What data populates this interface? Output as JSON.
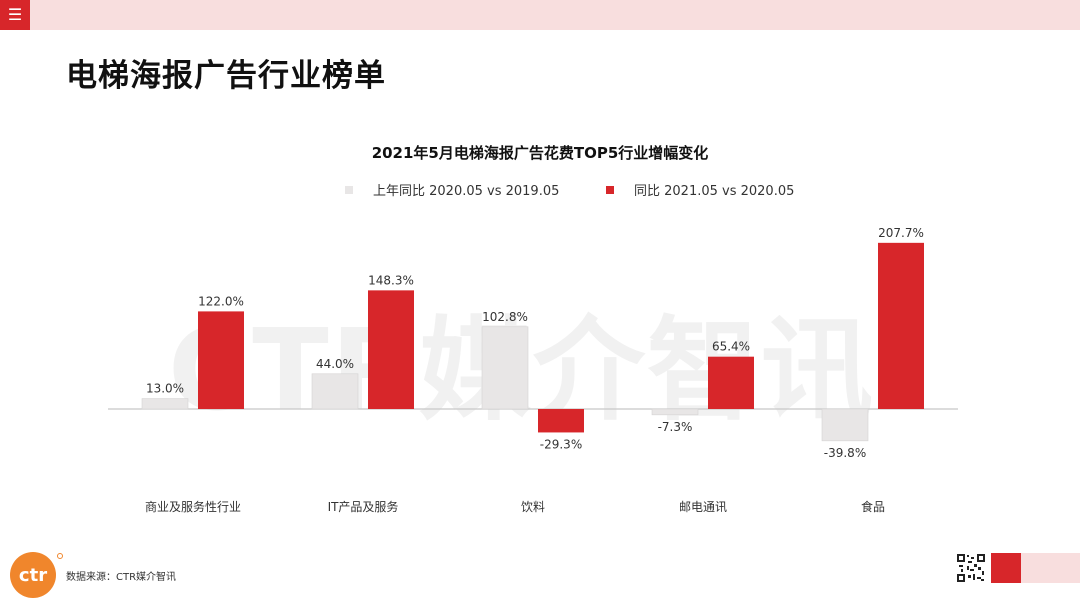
{
  "header": {
    "menu_icon": "☰"
  },
  "page": {
    "title": "电梯海报广告行业榜单"
  },
  "watermark_text": "CTR媒介智讯",
  "footer": {
    "source": "数据来源：CTR媒介智讯",
    "logo_text": "ctr"
  },
  "colors": {
    "accent": "#d7262a",
    "gray_bar": "#e8e6e6",
    "band": "#f8dede",
    "logo": "#f0862c"
  },
  "chart_data": {
    "type": "bar",
    "title": "2021年5月电梯海报广告花费TOP5行业增幅变化",
    "categories": [
      "商业及服务性行业",
      "IT产品及服务",
      "饮料",
      "邮电通讯",
      "食品"
    ],
    "series": [
      {
        "name": "上年同比 2020.05 vs 2019.05",
        "color": "#e8e6e6",
        "values": [
          13.0,
          44.0,
          102.8,
          -7.3,
          -39.8
        ],
        "labels": [
          "13.0%",
          "44.0%",
          "102.8%",
          "-7.3%",
          "-39.8%"
        ]
      },
      {
        "name": "同比 2021.05 vs 2020.05",
        "color": "#d7262a",
        "values": [
          122.0,
          148.3,
          -29.3,
          65.4,
          207.7
        ],
        "labels": [
          "122.0%",
          "148.3%",
          "-29.3%",
          "65.4%",
          "207.7%"
        ]
      }
    ],
    "ylim": [
      -40,
      210
    ],
    "legend": "top",
    "grid": false,
    "xlabel": "",
    "ylabel": ""
  }
}
